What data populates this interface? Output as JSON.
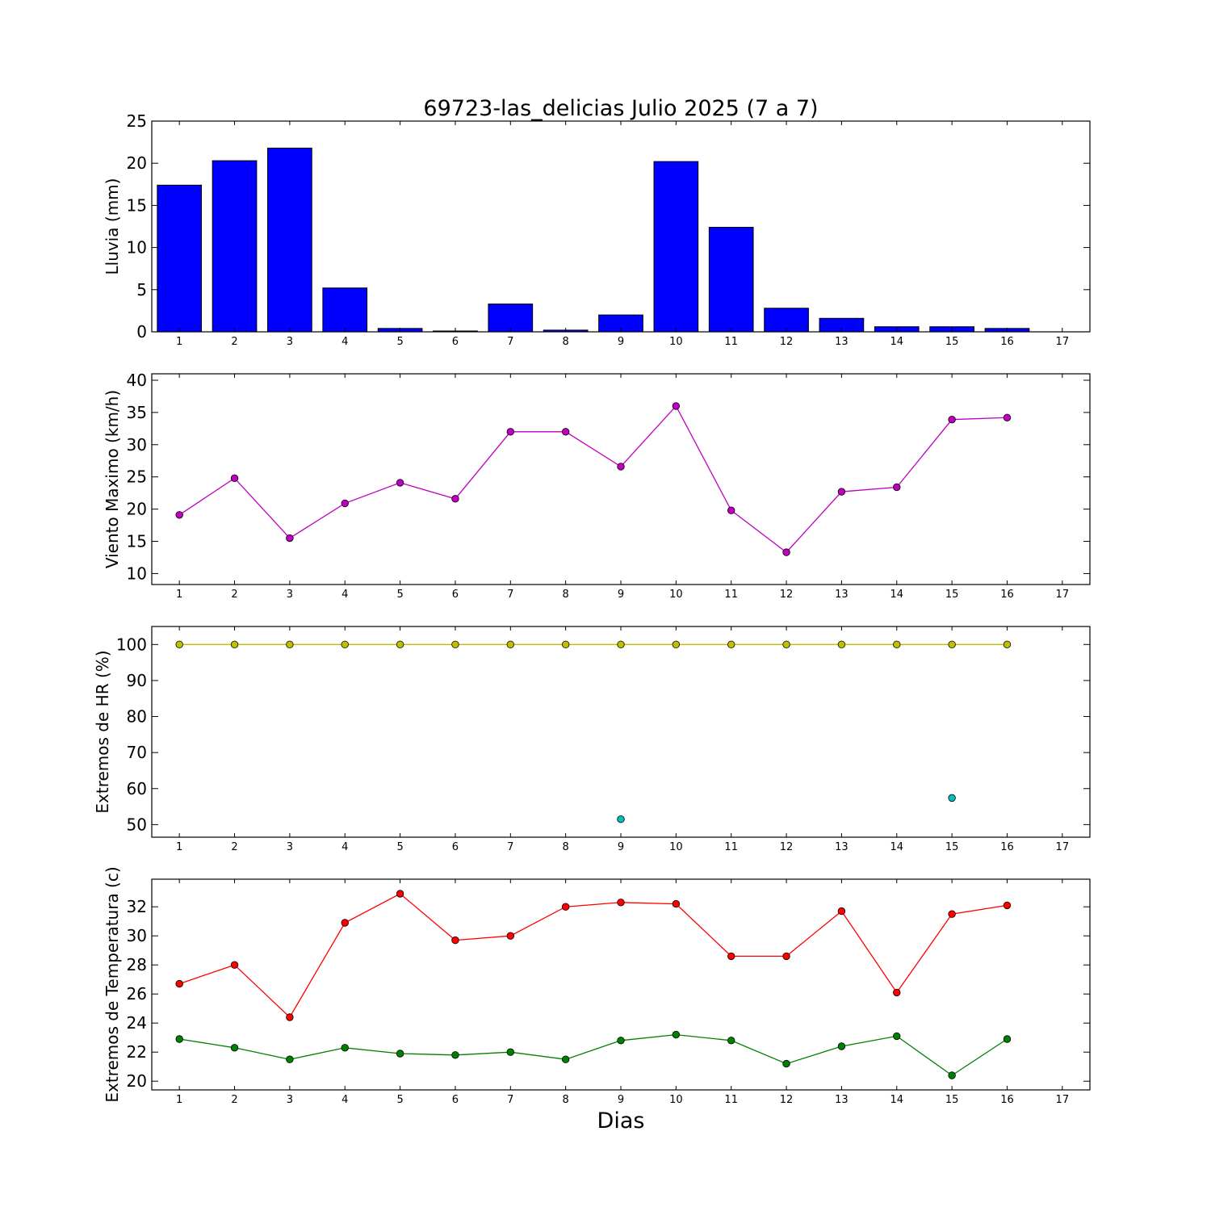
{
  "title": "69723-las_delicias Julio 2025  (7 a 7)",
  "xlabel": "Dias",
  "x_ticks": [
    "1",
    "2",
    "3",
    "4",
    "5",
    "6",
    "7",
    "8",
    "9",
    "10",
    "11",
    "12",
    "13",
    "14",
    "15",
    "16",
    "17"
  ],
  "chart_data": [
    {
      "type": "bar",
      "ylabel": "Lluvia (mm)",
      "ylim": [
        0,
        25
      ],
      "yticks": [
        0,
        5,
        10,
        15,
        20,
        25
      ],
      "xlim": [
        0.5,
        17.5
      ],
      "grid": false,
      "categories": [
        "1",
        "2",
        "3",
        "4",
        "5",
        "6",
        "7",
        "8",
        "9",
        "10",
        "11",
        "12",
        "13",
        "14",
        "15",
        "16",
        "17"
      ],
      "series": [
        {
          "color": "#0000ff",
          "x": [
            1,
            2,
            3,
            4,
            5,
            6,
            7,
            8,
            9,
            10,
            11,
            12,
            13,
            14,
            15,
            16
          ],
          "values": [
            17.4,
            20.3,
            21.8,
            5.2,
            0.4,
            0.1,
            3.3,
            0.2,
            2.0,
            20.2,
            12.4,
            2.8,
            1.6,
            0.6,
            0.6,
            0.4
          ]
        }
      ]
    },
    {
      "type": "line",
      "ylabel": "Viento Maximo (km/h)",
      "ylim": [
        8.3,
        41.0
      ],
      "yticks": [
        10,
        15,
        20,
        25,
        30,
        35,
        40
      ],
      "xlim": [
        0.5,
        17.5
      ],
      "grid": false,
      "series": [
        {
          "color": "#bf00bf",
          "line": true,
          "x": [
            1,
            2,
            3,
            4,
            5,
            6,
            7,
            8,
            9,
            10,
            11,
            12,
            13,
            14,
            15,
            16
          ],
          "values": [
            19.1,
            24.8,
            15.5,
            20.9,
            24.1,
            21.6,
            32.0,
            32.0,
            26.6,
            36.0,
            19.8,
            13.3,
            22.7,
            23.4,
            33.9,
            34.2
          ]
        }
      ]
    },
    {
      "type": "line",
      "ylabel": "Extremos de HR (%)",
      "ylim": [
        46.5,
        105.0
      ],
      "yticks": [
        50,
        60,
        70,
        80,
        90,
        100
      ],
      "xlim": [
        0.5,
        17.5
      ],
      "grid": false,
      "series": [
        {
          "color": "#bfbf00",
          "line": true,
          "x": [
            1,
            2,
            3,
            4,
            5,
            6,
            7,
            8,
            9,
            10,
            11,
            12,
            13,
            14,
            15,
            16
          ],
          "values": [
            100,
            100,
            100,
            100,
            100,
            100,
            100,
            100,
            100,
            100,
            100,
            100,
            100,
            100,
            100,
            100
          ]
        },
        {
          "color": "#00bfbf",
          "line": false,
          "x": [
            9,
            15
          ],
          "values": [
            51.5,
            57.4
          ]
        }
      ]
    },
    {
      "type": "line",
      "ylabel": "Extremos de Temperatura (c)",
      "ylim": [
        19.4,
        33.9
      ],
      "yticks": [
        20,
        22,
        24,
        26,
        28,
        30,
        32
      ],
      "xlim": [
        0.5,
        17.5
      ],
      "grid": false,
      "series": [
        {
          "color": "#ff0000",
          "line": true,
          "x": [
            1,
            2,
            3,
            4,
            5,
            6,
            7,
            8,
            9,
            10,
            11,
            12,
            13,
            14,
            15,
            16
          ],
          "values": [
            26.7,
            28.0,
            24.4,
            30.9,
            32.9,
            29.7,
            30.0,
            32.0,
            32.3,
            32.2,
            28.6,
            28.6,
            31.7,
            26.1,
            31.5,
            32.1
          ]
        },
        {
          "color": "#008000",
          "line": true,
          "x": [
            1,
            2,
            3,
            4,
            5,
            6,
            7,
            8,
            9,
            10,
            11,
            12,
            13,
            14,
            15,
            16
          ],
          "values": [
            22.9,
            22.3,
            21.5,
            22.3,
            21.9,
            21.8,
            22.0,
            21.5,
            22.8,
            23.2,
            22.8,
            21.2,
            22.4,
            23.1,
            20.4,
            22.9
          ]
        }
      ]
    }
  ]
}
